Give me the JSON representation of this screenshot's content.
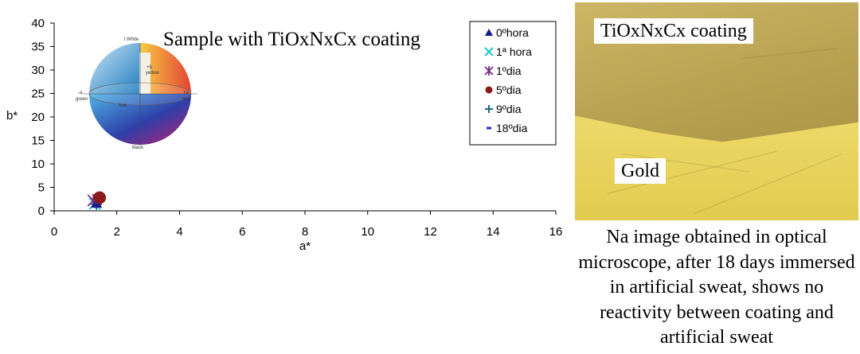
{
  "chart_data": {
    "type": "scatter",
    "title": "Sample with TiOxNxCx coating",
    "xlabel": "a*",
    "ylabel": "b*",
    "xlim": [
      0,
      16
    ],
    "ylim": [
      0,
      40
    ],
    "xticks": [
      "0",
      "2",
      "4",
      "6",
      "8",
      "10",
      "12",
      "14",
      "16"
    ],
    "yticks": [
      "0",
      "5",
      "10",
      "15",
      "20",
      "25",
      "30",
      "35",
      "40"
    ],
    "grid": false,
    "legend_position": "top-right",
    "series": [
      {
        "name": "0ºhora",
        "marker": "triangle",
        "color": "#1a1a8c",
        "points": [
          [
            1.35,
            1.6
          ]
        ]
      },
      {
        "name": "1ª hora",
        "marker": "x",
        "color": "#22c4d8",
        "points": [
          [
            1.3,
            1.5
          ]
        ]
      },
      {
        "name": "1ºdia",
        "marker": "star",
        "color": "#7a2a8c",
        "points": [
          [
            1.25,
            2.2
          ]
        ]
      },
      {
        "name": "5ºdia",
        "marker": "circle",
        "color": "#8b1a1a",
        "points": [
          [
            1.45,
            2.8
          ]
        ]
      },
      {
        "name": "9ºdia",
        "marker": "plus",
        "color": "#1a6b7a",
        "points": [
          [
            1.35,
            1.4
          ]
        ]
      },
      {
        "name": "18ºdia",
        "marker": "dash",
        "color": "#1f2fd0",
        "points": [
          [
            1.4,
            1.7
          ]
        ]
      }
    ]
  },
  "sphere_labels": [
    "l White",
    "+b",
    "yellow",
    "+a",
    "red",
    "-a",
    "green",
    "black",
    "hue"
  ],
  "micrograph": {
    "top_label": "TiOxNxCx coating",
    "bottom_label": "Gold"
  },
  "caption": "Na image obtained in optical microscope, after 18 days immersed in artificial sweat, shows no reactivity between coating and artificial sweat"
}
